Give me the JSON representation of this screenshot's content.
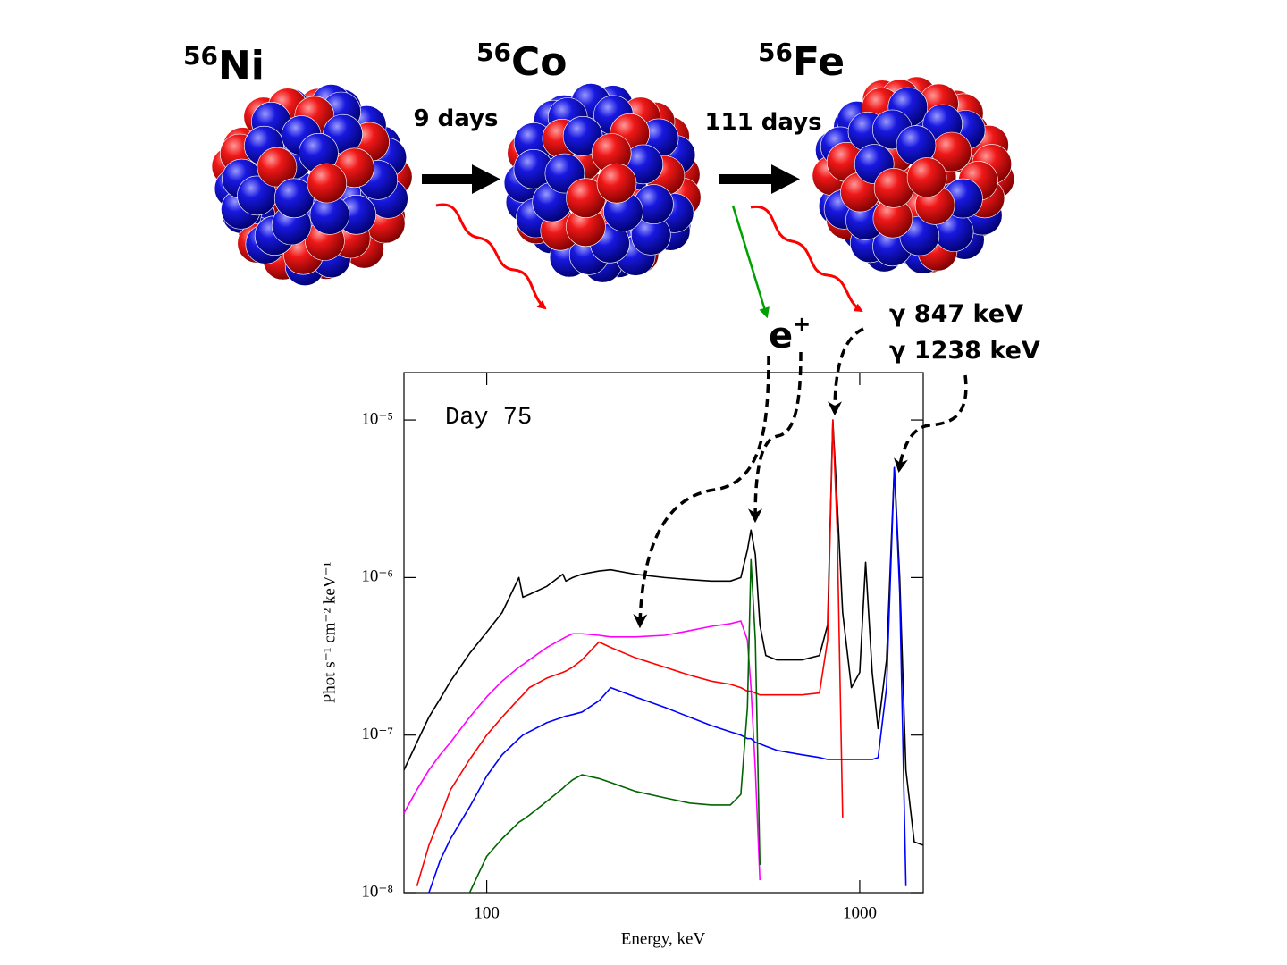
{
  "diagram": {
    "nuclei": [
      {
        "mass": "56",
        "symbol": "Ni"
      },
      {
        "mass": "56",
        "symbol": "Co"
      },
      {
        "mass": "56",
        "symbol": "Fe"
      }
    ],
    "decays": [
      "9 days",
      "111 days"
    ],
    "positron": {
      "base": "e",
      "sup": "+"
    },
    "gamma_lines": [
      "γ 847 keV",
      "γ 1238 keV"
    ]
  },
  "chart_data": {
    "type": "line",
    "annotation": "Day 75",
    "x_label": "Energy, keV",
    "y_label": "Phot s⁻¹ cm⁻² keV⁻¹",
    "xscale": "log",
    "yscale": "log",
    "xlim": [
      60,
      1480
    ],
    "ylim": [
      1e-08,
      2e-05
    ],
    "xticks": [
      100,
      1000
    ],
    "yticks": [
      {
        "value": 1e-08,
        "label": "10⁻⁸"
      },
      {
        "value": 1e-07,
        "label": "10⁻⁷"
      },
      {
        "value": 1e-06,
        "label": "10⁻⁶"
      },
      {
        "value": 1e-05,
        "label": "10⁻⁵"
      }
    ],
    "x": [
      60,
      65,
      70,
      75,
      80,
      90,
      100,
      110,
      122,
      125,
      130,
      145,
      160,
      163,
      170,
      180,
      200,
      215,
      250,
      300,
      350,
      400,
      450,
      480,
      500,
      511,
      525,
      540,
      560,
      600,
      700,
      780,
      820,
      847,
      870,
      900,
      950,
      1000,
      1037,
      1080,
      1120,
      1180,
      1238,
      1280,
      1330,
      1400,
      1480
    ],
    "series": [
      {
        "color": "#000000",
        "values": [
          6e-08,
          9e-08,
          1.3e-07,
          1.7e-07,
          2.2e-07,
          3.3e-07,
          4.5e-07,
          6e-07,
          1e-06,
          7.5e-07,
          7.8e-07,
          8.8e-07,
          1.05e-06,
          9.5e-07,
          1e-06,
          1.05e-06,
          1.1e-06,
          1.12e-06,
          1.05e-06,
          1e-06,
          9.7e-07,
          9.5e-07,
          9.5e-07,
          1e-06,
          1.5e-06,
          2e-06,
          1.4e-06,
          5e-07,
          3.2e-07,
          3e-07,
          3e-07,
          3.2e-07,
          5e-07,
          1e-05,
          3e-06,
          6e-07,
          2e-07,
          2.5e-07,
          1.25e-06,
          2.5e-07,
          1.1e-07,
          3e-07,
          5e-06,
          1e-06,
          6e-08,
          2.1e-08,
          2e-08
        ]
      },
      {
        "color": "#ff00ff",
        "values": [
          3.2e-08,
          4.5e-08,
          6e-08,
          7.5e-08,
          9e-08,
          1.3e-07,
          1.75e-07,
          2.2e-07,
          2.7e-07,
          2.8e-07,
          3e-07,
          3.6e-07,
          4.1e-07,
          4.2e-07,
          4.4e-07,
          4.4e-07,
          4.3e-07,
          4.2e-07,
          4.2e-07,
          4.3e-07,
          4.6e-07,
          4.9e-07,
          5.1e-07,
          5.3e-07,
          4e-07,
          2e-07,
          6e-08,
          1.2e-08,
          null,
          null,
          null,
          null,
          null,
          null,
          null,
          null,
          null,
          null,
          null,
          null,
          null,
          null,
          null,
          null,
          null,
          null,
          null
        ]
      },
      {
        "color": "#ff0000",
        "values": [
          null,
          1.1e-08,
          2e-08,
          3e-08,
          4.5e-08,
          7e-08,
          1e-07,
          1.3e-07,
          1.7e-07,
          1.8e-07,
          2e-07,
          2.3e-07,
          2.5e-07,
          2.55e-07,
          2.7e-07,
          3e-07,
          3.9e-07,
          3.6e-07,
          3.1e-07,
          2.7e-07,
          2.4e-07,
          2.2e-07,
          2.1e-07,
          2e-07,
          1.9e-07,
          1.9e-07,
          1.85e-07,
          1.8e-07,
          1.8e-07,
          1.8e-07,
          1.8e-07,
          1.85e-07,
          4e-07,
          1e-05,
          2e-06,
          3e-08,
          null,
          null,
          null,
          null,
          null,
          null,
          null,
          null,
          null,
          null,
          null
        ]
      },
      {
        "color": "#0000ff",
        "values": [
          null,
          null,
          1e-08,
          1.6e-08,
          2.2e-08,
          3.5e-08,
          5.5e-08,
          7.5e-08,
          9.5e-08,
          1e-07,
          1.05e-07,
          1.2e-07,
          1.3e-07,
          1.32e-07,
          1.35e-07,
          1.4e-07,
          1.65e-07,
          2e-07,
          1.75e-07,
          1.5e-07,
          1.3e-07,
          1.15e-07,
          1.05e-07,
          1e-07,
          9.5e-08,
          9.5e-08,
          9e-08,
          8.8e-08,
          8.5e-08,
          8e-08,
          7.5e-08,
          7.2e-08,
          7e-08,
          7e-08,
          7e-08,
          7e-08,
          7e-08,
          7e-08,
          7e-08,
          7e-08,
          7.2e-08,
          2e-07,
          5e-06,
          8e-07,
          1.1e-08,
          null,
          null
        ]
      },
      {
        "color": "#006400",
        "values": [
          null,
          null,
          null,
          null,
          null,
          1e-08,
          1.7e-08,
          2.2e-08,
          2.8e-08,
          2.9e-08,
          3.1e-08,
          3.8e-08,
          4.6e-08,
          4.8e-08,
          5.2e-08,
          5.6e-08,
          5.3e-08,
          5e-08,
          4.4e-08,
          4e-08,
          3.7e-08,
          3.6e-08,
          3.6e-08,
          4.2e-08,
          1.5e-07,
          1.3e-06,
          4e-07,
          1.5e-08,
          null,
          null,
          null,
          null,
          null,
          null,
          null,
          null,
          null,
          null,
          null,
          null,
          null,
          null,
          null,
          null,
          null,
          null,
          null
        ]
      }
    ]
  }
}
